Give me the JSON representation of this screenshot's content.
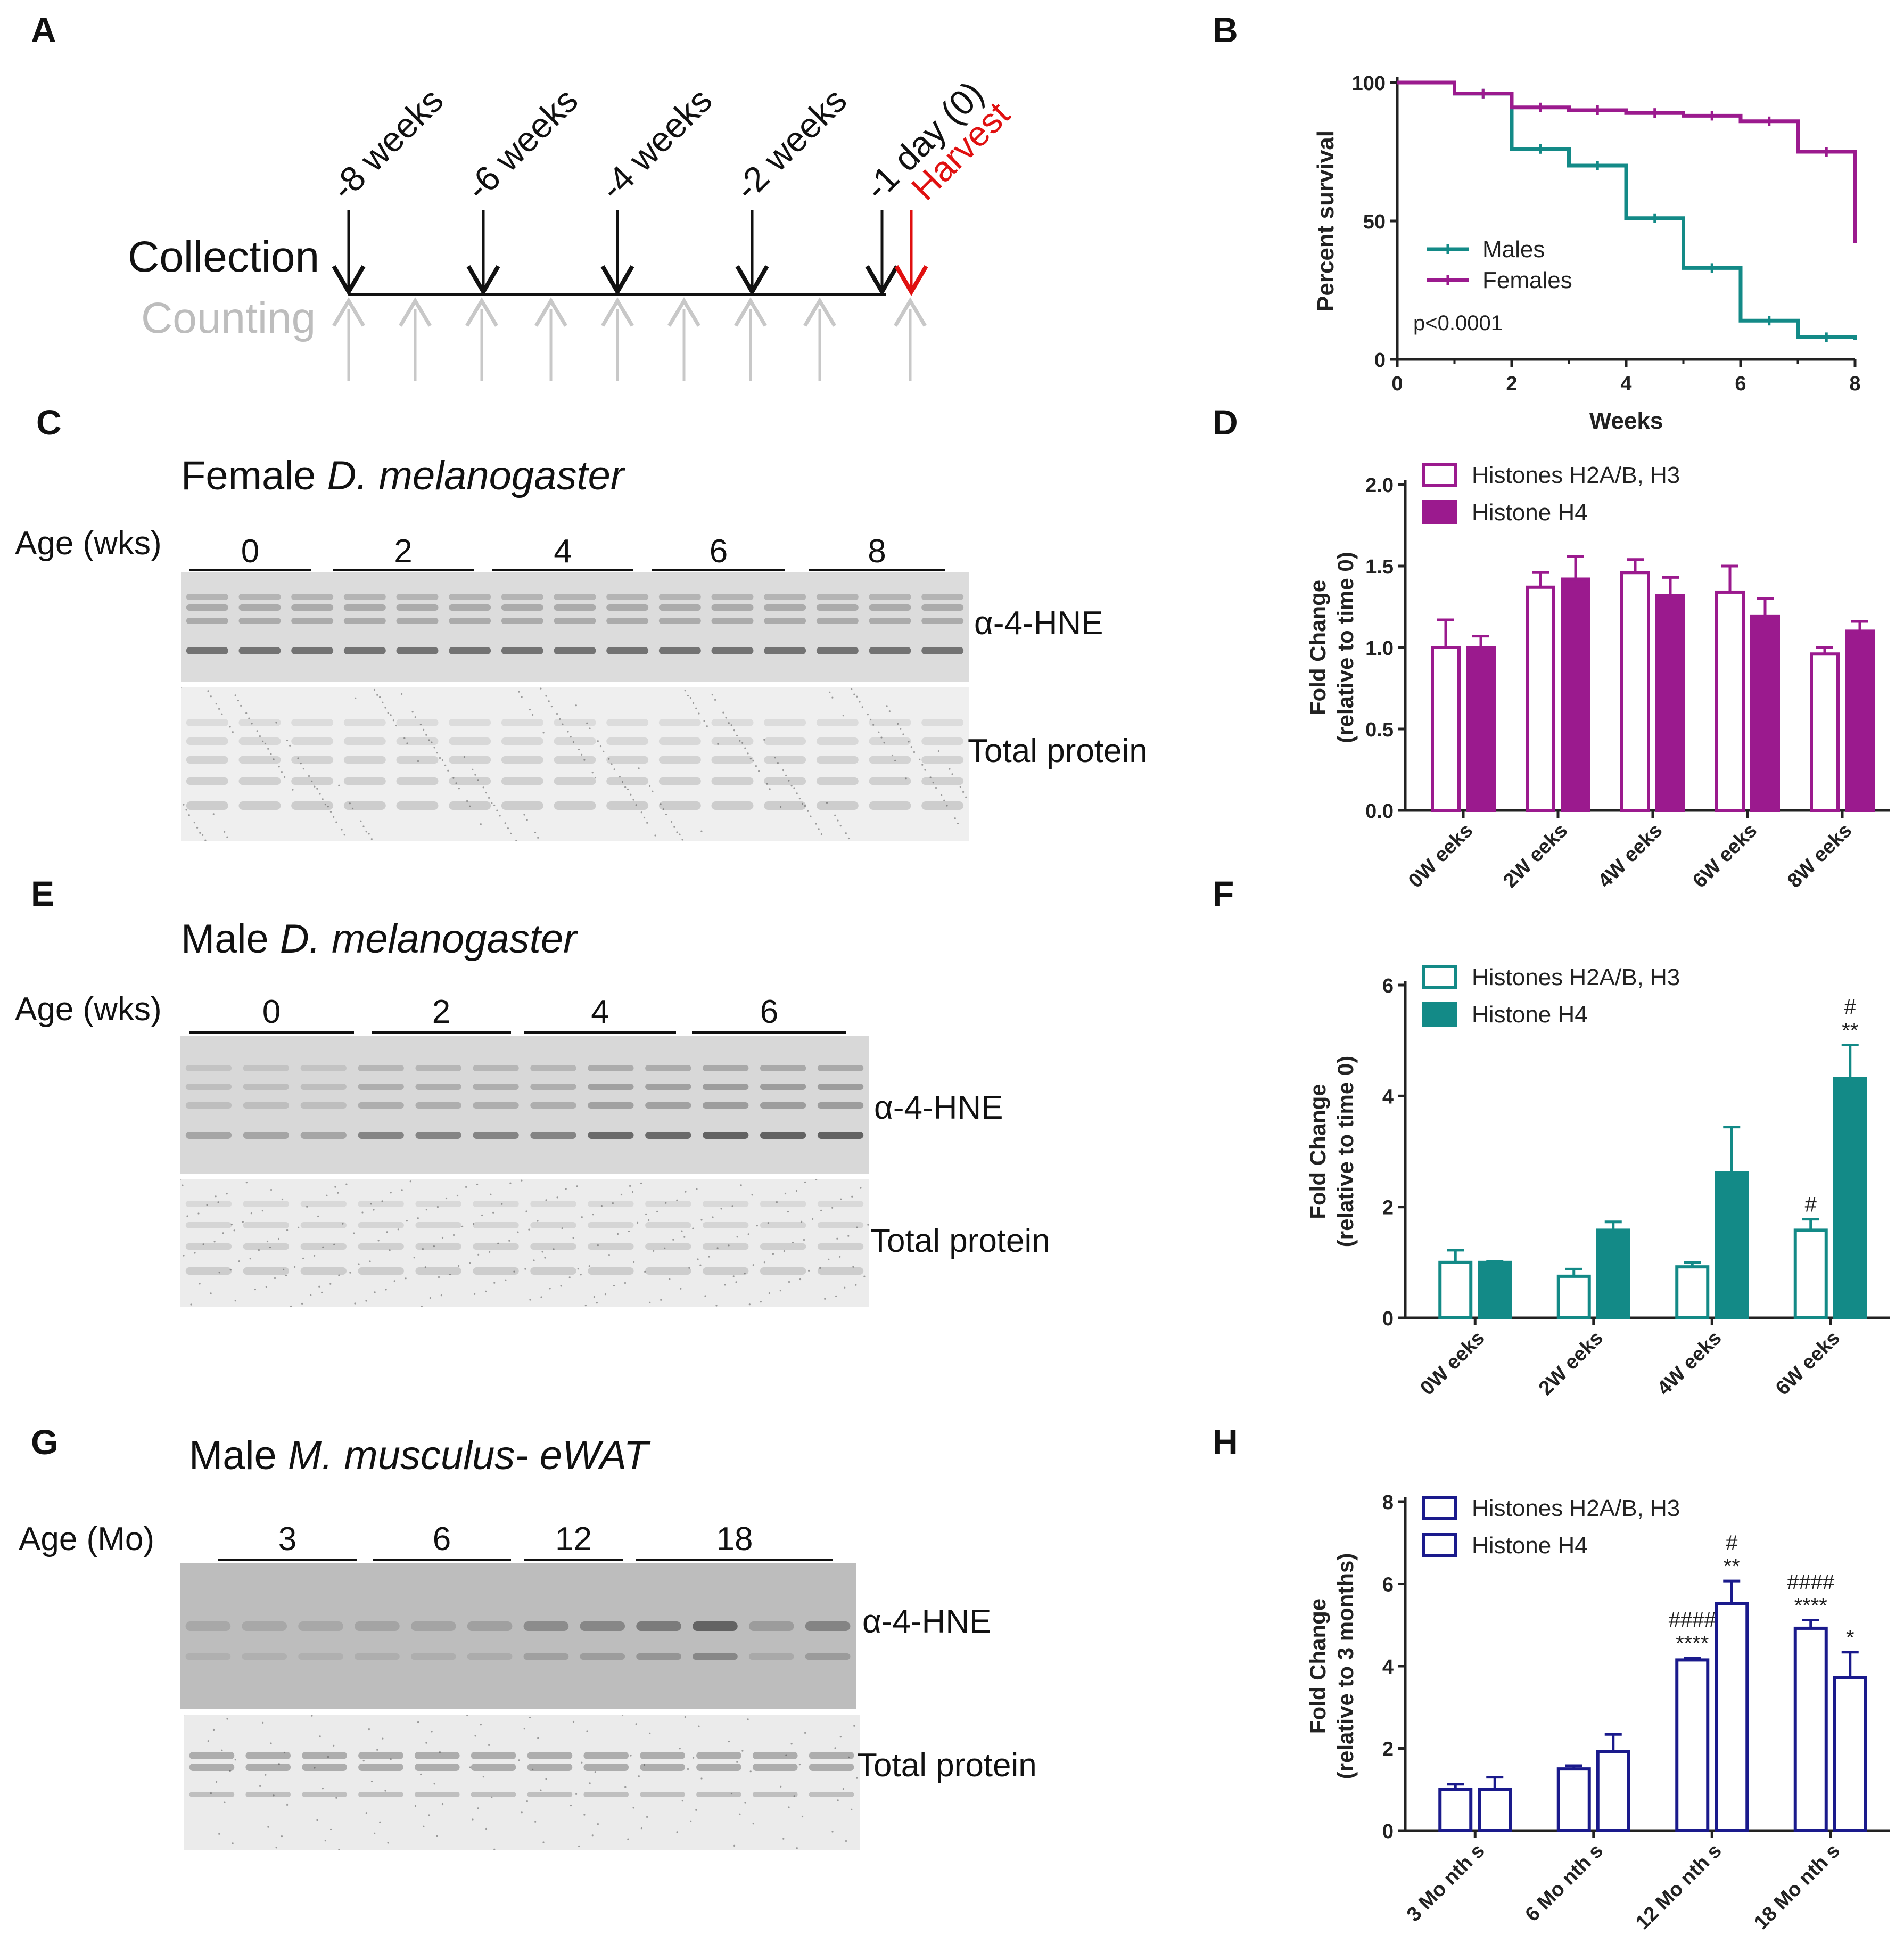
{
  "panel_labels": {
    "A": "A",
    "B": "B",
    "C": "C",
    "D": "D",
    "E": "E",
    "F": "F",
    "G": "G",
    "H": "H"
  },
  "timeline": {
    "collection_label": "Collection",
    "counting_label": "Counting",
    "time_points": [
      "-8 weeks",
      "-6 weeks",
      "-4 weeks",
      "-2 weeks",
      "-1 day (0)"
    ],
    "harvest_label": "Harvest",
    "collection_color": "#111111",
    "harvest_color": "#e01010",
    "counting_color": "#c8c8c8"
  },
  "panel_C": {
    "title_prefix": "Female ",
    "title_species": "D. melanogaster",
    "age_label": "Age (wks)",
    "lanes": [
      "0",
      "2",
      "4",
      "6",
      "8"
    ],
    "blot1_label": "α-4-HNE",
    "blot2_label": "Total protein"
  },
  "panel_E": {
    "title_prefix": "Male ",
    "title_species": "D. melanogaster",
    "age_label": "Age (wks)",
    "lanes": [
      "0",
      "2",
      "4",
      "6"
    ],
    "blot1_label": "α-4-HNE",
    "blot2_label": "Total protein"
  },
  "panel_G": {
    "title_prefix": "Male ",
    "title_species": "M. musculus- eWAT",
    "age_label": "Age (Mo)",
    "lanes": [
      "3",
      "6",
      "12",
      "18"
    ],
    "blot1_label": "α-4-HNE",
    "blot2_label": "Total protein"
  },
  "chart_data": [
    {
      "id": "B",
      "type": "line",
      "step": true,
      "xlabel": "Weeks",
      "ylabel": "Percent survival",
      "xlim": [
        0,
        8
      ],
      "ylim": [
        0,
        100
      ],
      "xticks": [
        0,
        2,
        4,
        6,
        8
      ],
      "yticks": [
        0,
        50,
        100
      ],
      "annotation": "p<0.0001",
      "legend_position": "middle-left",
      "series": [
        {
          "name": "Males",
          "color": "#138a87",
          "x": [
            0,
            1,
            2,
            3,
            4,
            5,
            6,
            7,
            8
          ],
          "y": [
            100,
            96,
            76,
            70,
            51,
            33,
            14,
            8,
            7
          ]
        },
        {
          "name": "Females",
          "color": "#9b1a8e",
          "x": [
            0,
            1,
            2,
            3,
            4,
            5,
            6,
            7,
            8
          ],
          "y": [
            100,
            96,
            91,
            90,
            89,
            88,
            86,
            75,
            72
          ],
          "end": [
            8,
            42
          ]
        }
      ]
    },
    {
      "id": "D",
      "type": "bar",
      "ylabel": "Fold Change",
      "ylabel2": "(relative to time 0)",
      "ylim": [
        0,
        2.0
      ],
      "yticks": [
        "0.0",
        "0.5",
        "1.0",
        "1.5",
        "2.0"
      ],
      "categories": [
        "0W eeks",
        "2W eeks",
        "4W eeks",
        "6W eeks",
        "8W eeks"
      ],
      "legend_position": "top-left",
      "series": [
        {
          "name": "Histones H2A/B, H3",
          "fill": "none",
          "color": "#9b1a8e",
          "values": [
            1.0,
            1.37,
            1.46,
            1.34,
            0.96
          ],
          "errors": [
            0.17,
            0.09,
            0.08,
            0.16,
            0.04
          ],
          "marks": [
            "",
            "",
            "",
            "",
            ""
          ]
        },
        {
          "name": "Histone H4",
          "fill": "solid",
          "color": "#9b1a8e",
          "values": [
            1.0,
            1.42,
            1.32,
            1.19,
            1.1
          ],
          "errors": [
            0.07,
            0.14,
            0.11,
            0.11,
            0.06
          ],
          "marks": [
            "",
            "",
            "",
            "",
            ""
          ]
        }
      ]
    },
    {
      "id": "F",
      "type": "bar",
      "ylabel": "Fold Change",
      "ylabel2": "(relative to time 0)",
      "ylim": [
        0,
        6
      ],
      "yticks": [
        "0",
        "2",
        "4",
        "6"
      ],
      "categories": [
        "0W eeks",
        "2W eeks",
        "4W eeks",
        "6W eeks"
      ],
      "legend_position": "top-left",
      "series": [
        {
          "name": "Histones H2A/B, H3",
          "fill": "none",
          "color": "#138a87",
          "values": [
            1.0,
            0.75,
            0.92,
            1.58
          ],
          "errors": [
            0.22,
            0.13,
            0.08,
            0.2
          ],
          "marks": [
            "",
            "",
            "",
            "#"
          ]
        },
        {
          "name": "Histone H4",
          "fill": "solid",
          "color": "#138a87",
          "values": [
            1.0,
            1.58,
            2.62,
            4.32
          ],
          "errors": [
            0.02,
            0.15,
            0.82,
            0.6
          ],
          "marks": [
            "",
            "",
            "",
            "#\n**"
          ]
        }
      ]
    },
    {
      "id": "H",
      "type": "bar",
      "ylabel": "Fold Change",
      "ylabel2": "(relative to 3 months)",
      "ylim": [
        0,
        8
      ],
      "yticks": [
        "0",
        "2",
        "4",
        "6",
        "8"
      ],
      "categories": [
        "3 Mo nth s",
        "6 Mo nth s",
        "12 Mo nth s",
        "18 Mo nth s"
      ],
      "legend_position": "top-left",
      "series": [
        {
          "name": "Histones H2A/B, H3",
          "fill": "none",
          "color": "#1a1a8c",
          "values": [
            1.0,
            1.5,
            4.15,
            4.92
          ],
          "errors": [
            0.13,
            0.08,
            0.05,
            0.2
          ],
          "marks": [
            "",
            "",
            "####\n****",
            "####\n****"
          ]
        },
        {
          "name": "Histone H4",
          "fill": "none",
          "color": "#1a1a8c",
          "values": [
            1.0,
            1.92,
            5.52,
            3.72
          ],
          "errors": [
            0.3,
            0.42,
            0.55,
            0.62
          ],
          "marks": [
            "",
            "",
            "#\n**",
            "*"
          ]
        }
      ]
    }
  ]
}
